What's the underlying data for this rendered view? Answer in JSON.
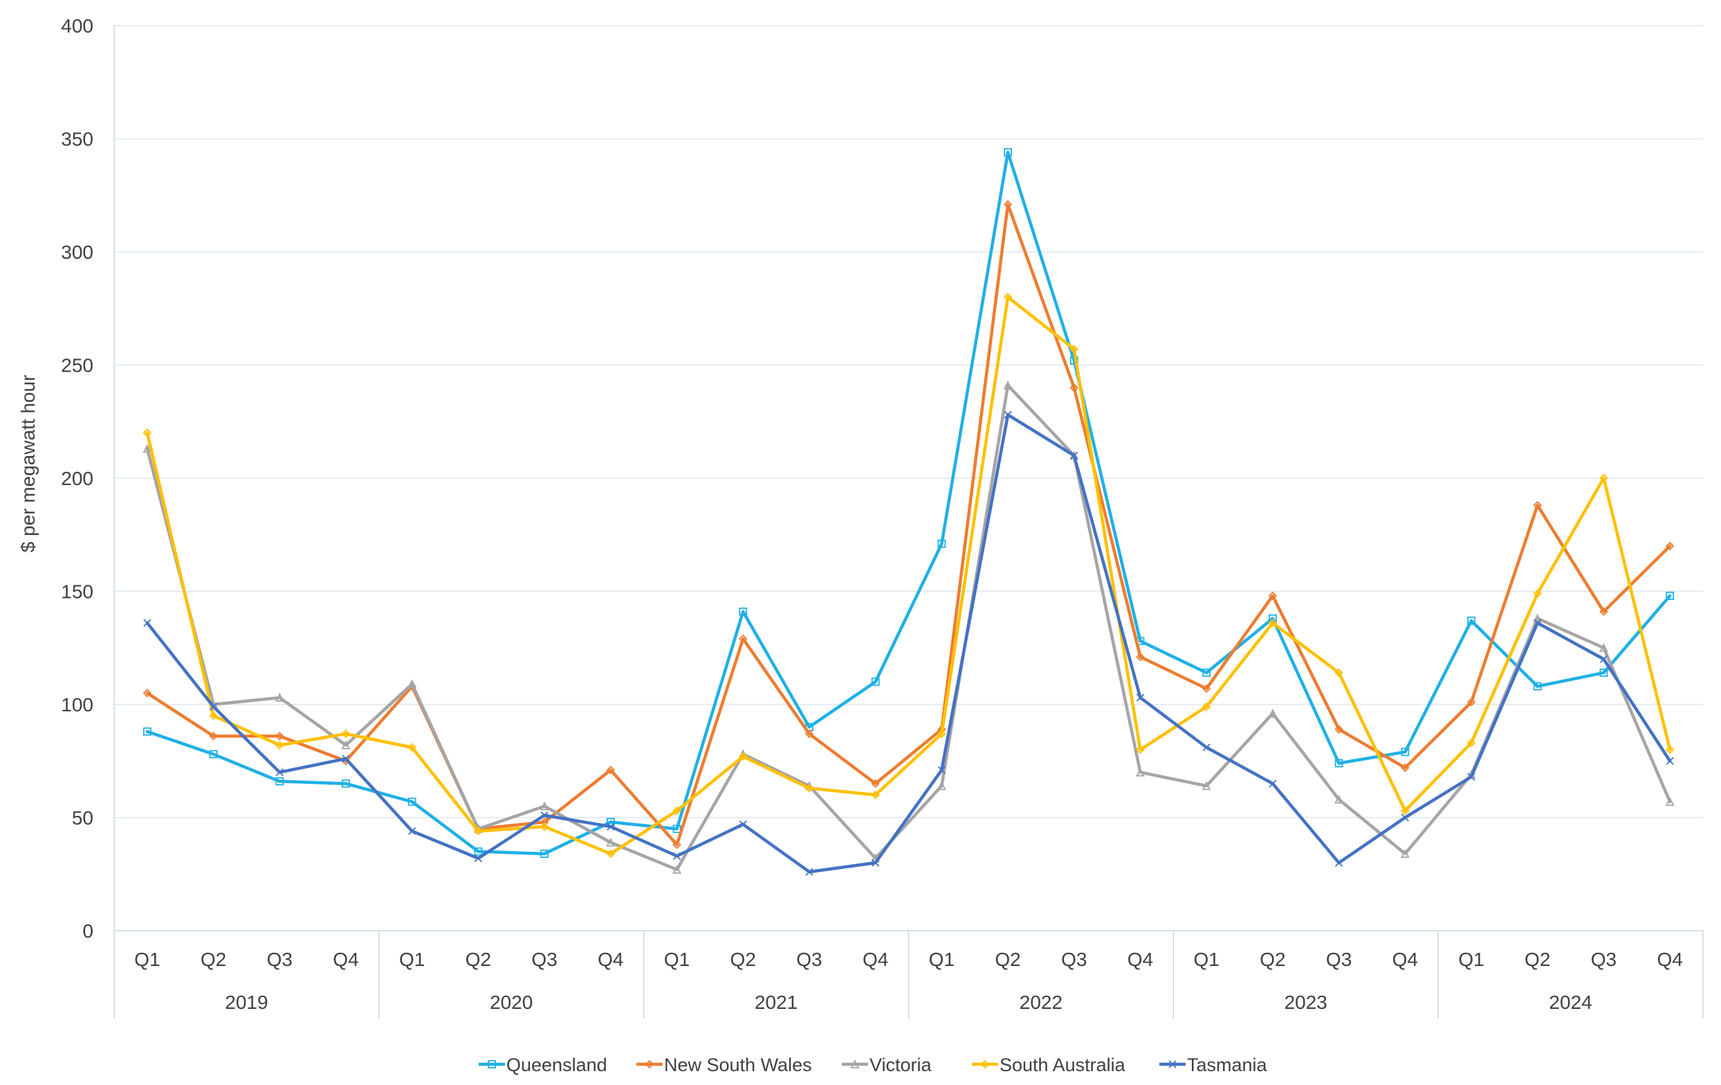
{
  "chart_data": {
    "type": "line",
    "title": "",
    "ylabel": "$ per megawatt hour",
    "xlabel": "",
    "ylim": [
      0,
      400
    ],
    "yticks": [
      0,
      50,
      100,
      150,
      200,
      250,
      300,
      350,
      400
    ],
    "grid": "horizontal",
    "legend_position": "bottom",
    "quarters": [
      "Q1",
      "Q2",
      "Q3",
      "Q4"
    ],
    "years": [
      "2019",
      "2020",
      "2021",
      "2022",
      "2023",
      "2024"
    ],
    "categories": [
      "2019 Q1",
      "2019 Q2",
      "2019 Q3",
      "2019 Q4",
      "2020 Q1",
      "2020 Q2",
      "2020 Q3",
      "2020 Q4",
      "2021 Q1",
      "2021 Q2",
      "2021 Q3",
      "2021 Q4",
      "2022 Q1",
      "2022 Q2",
      "2022 Q3",
      "2022 Q4",
      "2023 Q1",
      "2023 Q2",
      "2023 Q3",
      "2023 Q4",
      "2024 Q1",
      "2024 Q2",
      "2024 Q3",
      "2024 Q4"
    ],
    "series": [
      {
        "name": "Queensland",
        "color": "#1fb0e6",
        "marker": "square",
        "values": [
          88,
          78,
          66,
          65,
          57,
          35,
          34,
          48,
          45,
          141,
          90,
          110,
          171,
          344,
          252,
          128,
          114,
          138,
          74,
          79,
          137,
          108,
          114,
          148
        ]
      },
      {
        "name": "New South Wales",
        "color": "#ed7d31",
        "marker": "diamond",
        "values": [
          105,
          86,
          86,
          75,
          108,
          45,
          48,
          71,
          38,
          129,
          87,
          65,
          89,
          321,
          240,
          121,
          107,
          148,
          89,
          72,
          101,
          188,
          141,
          170
        ]
      },
      {
        "name": "Victoria",
        "color": "#a5a5a5",
        "marker": "triangle",
        "values": [
          213,
          100,
          103,
          82,
          109,
          45,
          55,
          39,
          27,
          78,
          64,
          32,
          64,
          241,
          210,
          70,
          64,
          96,
          58,
          34,
          69,
          138,
          125,
          57
        ]
      },
      {
        "name": "South Australia",
        "color": "#ffc000",
        "marker": "diamond",
        "values": [
          220,
          95,
          82,
          87,
          81,
          44,
          46,
          34,
          53,
          77,
          63,
          60,
          87,
          280,
          257,
          80,
          99,
          136,
          114,
          53,
          83,
          149,
          200,
          80
        ]
      },
      {
        "name": "Tasmania",
        "color": "#4472c4",
        "marker": "x",
        "values": [
          136,
          99,
          70,
          76,
          44,
          32,
          51,
          46,
          33,
          47,
          26,
          30,
          71,
          228,
          210,
          103,
          81,
          65,
          30,
          50,
          68,
          136,
          120,
          75
        ]
      }
    ]
  }
}
